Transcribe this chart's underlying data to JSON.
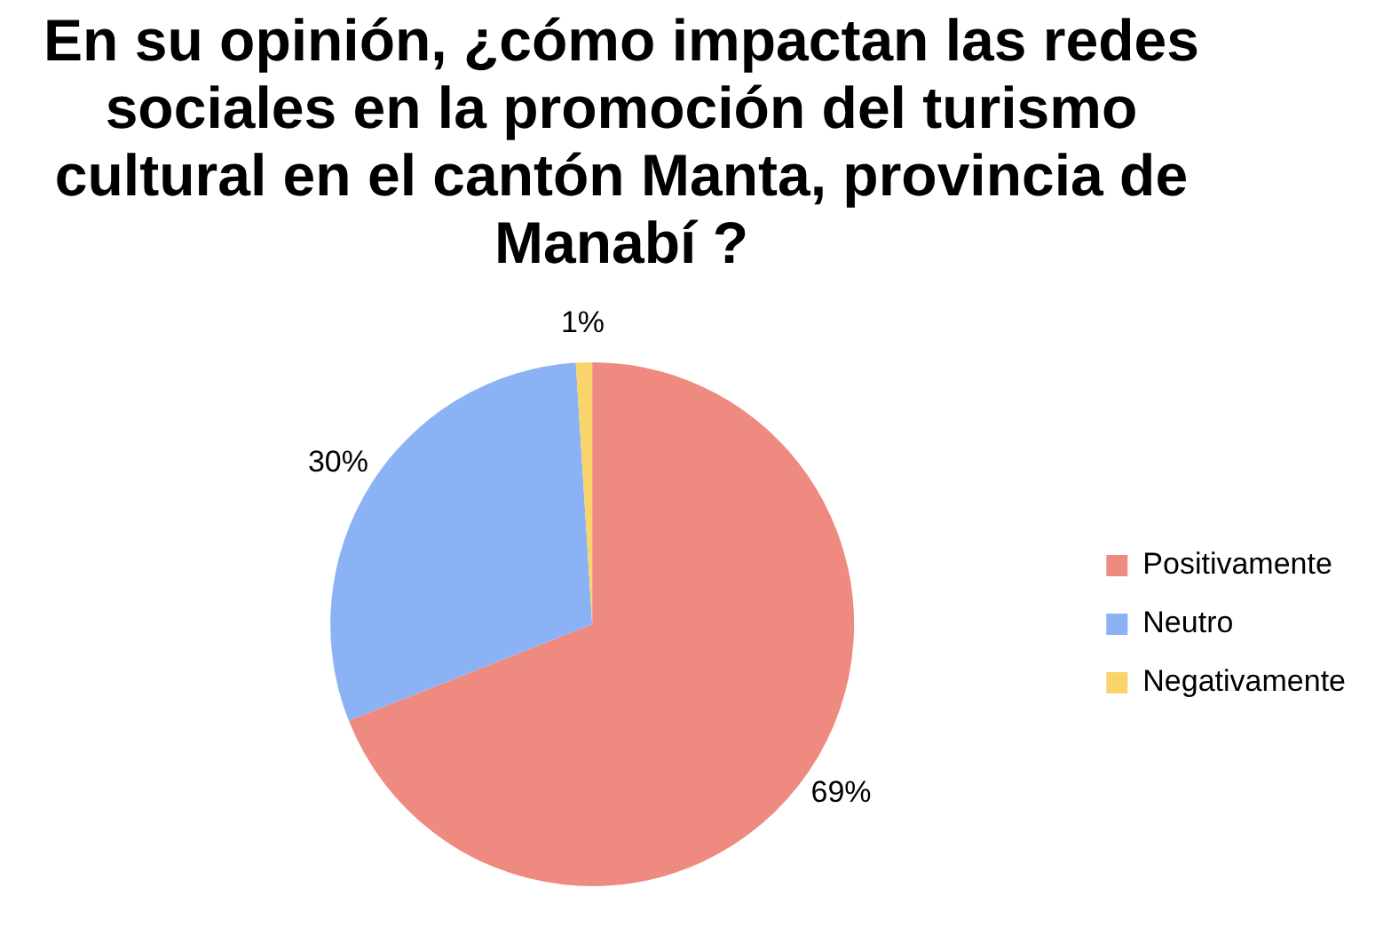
{
  "chart_data": {
    "type": "pie",
    "title": "En su opinión, ¿cómo impactan las redes sociales en la promoción del turismo cultural en  el cantón Manta, provincia de Manabí ?",
    "categories": [
      "Positivamente",
      "Neutro",
      "Negativamente"
    ],
    "values": [
      69,
      30,
      1
    ],
    "value_labels": [
      "69%",
      "30%",
      "1%"
    ],
    "colors": [
      "#ef8a80",
      "#8ab2f5",
      "#f8d46a"
    ],
    "legend": "right"
  }
}
